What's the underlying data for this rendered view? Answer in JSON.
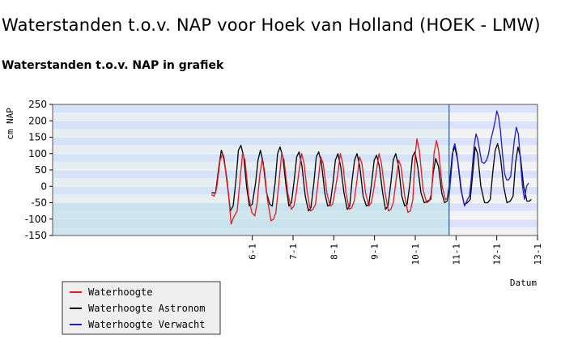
{
  "page": {
    "title": "Waterstanden t.o.v. NAP voor Hoek van Holland (HOEK - LMW)",
    "section_title": "Waterstanden t.o.v. NAP in grafiek"
  },
  "colors": {
    "waterhoogte": "#e8181c",
    "astronom": "#000000",
    "verwacht": "#1c1ccc",
    "band_dark": "#dce2fb",
    "band_light": "#f2f2f2",
    "fill_below": "#c2e2ea",
    "now_line": "#2a5a8a"
  },
  "chart_data": {
    "type": "line",
    "xlabel": "Datum",
    "ylabel": "cm NAP",
    "ylim": [
      -150,
      250
    ],
    "xlim": [
      1.1,
      13.0
    ],
    "now_x": 10.83,
    "grid": true,
    "legend_position": "bottom-left",
    "yticks": [
      "250",
      "200",
      "150",
      "100",
      "50",
      "0",
      "-50",
      "-100",
      "-150"
    ],
    "xticks": [
      {
        "x": 6,
        "label": "6-1"
      },
      {
        "x": 7,
        "label": "7-1"
      },
      {
        "x": 8,
        "label": "8-1"
      },
      {
        "x": 9,
        "label": "9-1"
      },
      {
        "x": 10,
        "label": "10-1"
      },
      {
        "x": 11,
        "label": "11-1"
      },
      {
        "x": 12,
        "label": "12-1"
      },
      {
        "x": 13,
        "label": "13-1"
      }
    ],
    "series": [
      {
        "name": "Waterhoogte",
        "color_key": "waterhoogte",
        "points": [
          [
            5.0,
            -25
          ],
          [
            5.06,
            -30
          ],
          [
            5.12,
            -10
          ],
          [
            5.21,
            80
          ],
          [
            5.27,
            100
          ],
          [
            5.33,
            60
          ],
          [
            5.42,
            -30
          ],
          [
            5.48,
            -115
          ],
          [
            5.54,
            -95
          ],
          [
            5.63,
            -75
          ],
          [
            5.7,
            20
          ],
          [
            5.76,
            100
          ],
          [
            5.82,
            80
          ],
          [
            5.91,
            -30
          ],
          [
            5.99,
            -80
          ],
          [
            6.06,
            -90
          ],
          [
            6.12,
            -50
          ],
          [
            6.18,
            30
          ],
          [
            6.24,
            80
          ],
          [
            6.3,
            50
          ],
          [
            6.37,
            -40
          ],
          [
            6.46,
            -105
          ],
          [
            6.52,
            -100
          ],
          [
            6.58,
            -80
          ],
          [
            6.66,
            20
          ],
          [
            6.72,
            100
          ],
          [
            6.78,
            80
          ],
          [
            6.87,
            -20
          ],
          [
            6.96,
            -70
          ],
          [
            7.02,
            -60
          ],
          [
            7.08,
            -20
          ],
          [
            7.14,
            40
          ],
          [
            7.21,
            100
          ],
          [
            7.27,
            70
          ],
          [
            7.35,
            -20
          ],
          [
            7.43,
            -75
          ],
          [
            7.49,
            -70
          ],
          [
            7.55,
            -55
          ],
          [
            7.62,
            20
          ],
          [
            7.68,
            90
          ],
          [
            7.74,
            70
          ],
          [
            7.83,
            -20
          ],
          [
            7.91,
            -60
          ],
          [
            7.97,
            -55
          ],
          [
            8.03,
            -15
          ],
          [
            8.1,
            40
          ],
          [
            8.16,
            100
          ],
          [
            8.22,
            70
          ],
          [
            8.3,
            -20
          ],
          [
            8.38,
            -70
          ],
          [
            8.44,
            -65
          ],
          [
            8.5,
            -45
          ],
          [
            8.57,
            20
          ],
          [
            8.63,
            90
          ],
          [
            8.69,
            70
          ],
          [
            8.78,
            -20
          ],
          [
            8.86,
            -60
          ],
          [
            8.92,
            -50
          ],
          [
            8.98,
            -10
          ],
          [
            9.05,
            50
          ],
          [
            9.11,
            100
          ],
          [
            9.17,
            70
          ],
          [
            9.26,
            -20
          ],
          [
            9.34,
            -75
          ],
          [
            9.4,
            -70
          ],
          [
            9.46,
            -50
          ],
          [
            9.53,
            20
          ],
          [
            9.59,
            80
          ],
          [
            9.65,
            60
          ],
          [
            9.74,
            -30
          ],
          [
            9.82,
            -80
          ],
          [
            9.88,
            -75
          ],
          [
            9.94,
            -40
          ],
          [
            10.0,
            100
          ],
          [
            10.04,
            145
          ],
          [
            10.1,
            110
          ],
          [
            10.19,
            -10
          ],
          [
            10.28,
            -50
          ],
          [
            10.34,
            -45
          ],
          [
            10.4,
            -20
          ],
          [
            10.46,
            100
          ],
          [
            10.52,
            140
          ],
          [
            10.57,
            110
          ],
          [
            10.66,
            0
          ],
          [
            10.74,
            -40
          ],
          [
            10.8,
            -35
          ],
          [
            10.83,
            -30
          ]
        ]
      },
      {
        "name": "Waterhoogte Astronom",
        "color_key": "astronom",
        "points": [
          [
            5.0,
            -20
          ],
          [
            5.1,
            -20
          ],
          [
            5.18,
            60
          ],
          [
            5.24,
            110
          ],
          [
            5.3,
            90
          ],
          [
            5.38,
            20
          ],
          [
            5.46,
            -75
          ],
          [
            5.53,
            -60
          ],
          [
            5.6,
            20
          ],
          [
            5.66,
            110
          ],
          [
            5.72,
            125
          ],
          [
            5.79,
            90
          ],
          [
            5.86,
            0
          ],
          [
            5.93,
            -60
          ],
          [
            6.0,
            -55
          ],
          [
            6.08,
            10
          ],
          [
            6.14,
            80
          ],
          [
            6.2,
            110
          ],
          [
            6.27,
            70
          ],
          [
            6.35,
            -20
          ],
          [
            6.43,
            -55
          ],
          [
            6.49,
            -60
          ],
          [
            6.56,
            10
          ],
          [
            6.62,
            100
          ],
          [
            6.68,
            120
          ],
          [
            6.75,
            90
          ],
          [
            6.83,
            0
          ],
          [
            6.9,
            -60
          ],
          [
            6.96,
            -50
          ],
          [
            7.03,
            20
          ],
          [
            7.09,
            90
          ],
          [
            7.15,
            105
          ],
          [
            7.22,
            60
          ],
          [
            7.3,
            -30
          ],
          [
            7.38,
            -75
          ],
          [
            7.44,
            -65
          ],
          [
            7.51,
            10
          ],
          [
            7.57,
            90
          ],
          [
            7.63,
            105
          ],
          [
            7.7,
            70
          ],
          [
            7.78,
            -20
          ],
          [
            7.85,
            -60
          ],
          [
            7.91,
            -55
          ],
          [
            7.98,
            10
          ],
          [
            8.04,
            80
          ],
          [
            8.1,
            100
          ],
          [
            8.17,
            60
          ],
          [
            8.25,
            -20
          ],
          [
            8.33,
            -70
          ],
          [
            8.39,
            -60
          ],
          [
            8.45,
            20
          ],
          [
            8.51,
            80
          ],
          [
            8.57,
            100
          ],
          [
            8.64,
            60
          ],
          [
            8.72,
            -30
          ],
          [
            8.8,
            -60
          ],
          [
            8.86,
            -55
          ],
          [
            8.93,
            10
          ],
          [
            8.99,
            80
          ],
          [
            9.05,
            95
          ],
          [
            9.12,
            60
          ],
          [
            9.2,
            -20
          ],
          [
            9.27,
            -70
          ],
          [
            9.33,
            -60
          ],
          [
            9.4,
            10
          ],
          [
            9.46,
            80
          ],
          [
            9.52,
            100
          ],
          [
            9.59,
            60
          ],
          [
            9.67,
            -30
          ],
          [
            9.74,
            -60
          ],
          [
            9.8,
            -55
          ],
          [
            9.87,
            10
          ],
          [
            9.93,
            90
          ],
          [
            9.99,
            105
          ],
          [
            10.06,
            60
          ],
          [
            10.14,
            -20
          ],
          [
            10.22,
            -50
          ],
          [
            10.3,
            -45
          ],
          [
            10.38,
            -40
          ],
          [
            10.44,
            40
          ],
          [
            10.5,
            85
          ],
          [
            10.57,
            60
          ],
          [
            10.65,
            -20
          ],
          [
            10.72,
            -50
          ],
          [
            10.78,
            -45
          ],
          [
            10.85,
            20
          ],
          [
            10.91,
            100
          ],
          [
            10.97,
            120
          ],
          [
            11.04,
            80
          ],
          [
            11.12,
            -10
          ],
          [
            11.2,
            -55
          ],
          [
            11.28,
            -50
          ],
          [
            11.35,
            -40
          ],
          [
            11.41,
            40
          ],
          [
            11.47,
            120
          ],
          [
            11.53,
            100
          ],
          [
            11.61,
            0
          ],
          [
            11.7,
            -50
          ],
          [
            11.78,
            -50
          ],
          [
            11.84,
            -40
          ],
          [
            11.9,
            40
          ],
          [
            11.96,
            110
          ],
          [
            12.02,
            130
          ],
          [
            12.09,
            90
          ],
          [
            12.17,
            0
          ],
          [
            12.25,
            -50
          ],
          [
            12.33,
            -45
          ],
          [
            12.4,
            -30
          ],
          [
            12.46,
            70
          ],
          [
            12.52,
            120
          ],
          [
            12.58,
            90
          ],
          [
            12.66,
            0
          ],
          [
            12.74,
            -45
          ],
          [
            12.8,
            -45
          ],
          [
            12.85,
            -40
          ]
        ]
      },
      {
        "name": "Waterhoogte Verwacht",
        "color_key": "verwacht",
        "points": [
          [
            10.83,
            -30
          ],
          [
            10.88,
            40
          ],
          [
            10.93,
            115
          ],
          [
            10.97,
            130
          ],
          [
            11.02,
            100
          ],
          [
            11.08,
            40
          ],
          [
            11.14,
            -20
          ],
          [
            11.21,
            -60
          ],
          [
            11.28,
            -40
          ],
          [
            11.33,
            -30
          ],
          [
            11.38,
            30
          ],
          [
            11.44,
            120
          ],
          [
            11.49,
            160
          ],
          [
            11.53,
            145
          ],
          [
            11.58,
            110
          ],
          [
            11.63,
            75
          ],
          [
            11.69,
            70
          ],
          [
            11.75,
            80
          ],
          [
            11.8,
            100
          ],
          [
            11.85,
            140
          ],
          [
            11.91,
            170
          ],
          [
            11.96,
            200
          ],
          [
            12.0,
            230
          ],
          [
            12.04,
            215
          ],
          [
            12.09,
            170
          ],
          [
            12.14,
            100
          ],
          [
            12.19,
            40
          ],
          [
            12.24,
            20
          ],
          [
            12.29,
            20
          ],
          [
            12.34,
            30
          ],
          [
            12.38,
            80
          ],
          [
            12.43,
            140
          ],
          [
            12.48,
            180
          ],
          [
            12.53,
            160
          ],
          [
            12.58,
            80
          ],
          [
            12.63,
            0
          ],
          [
            12.68,
            -40
          ],
          [
            12.73,
            0
          ],
          [
            12.78,
            10
          ]
        ]
      }
    ]
  }
}
